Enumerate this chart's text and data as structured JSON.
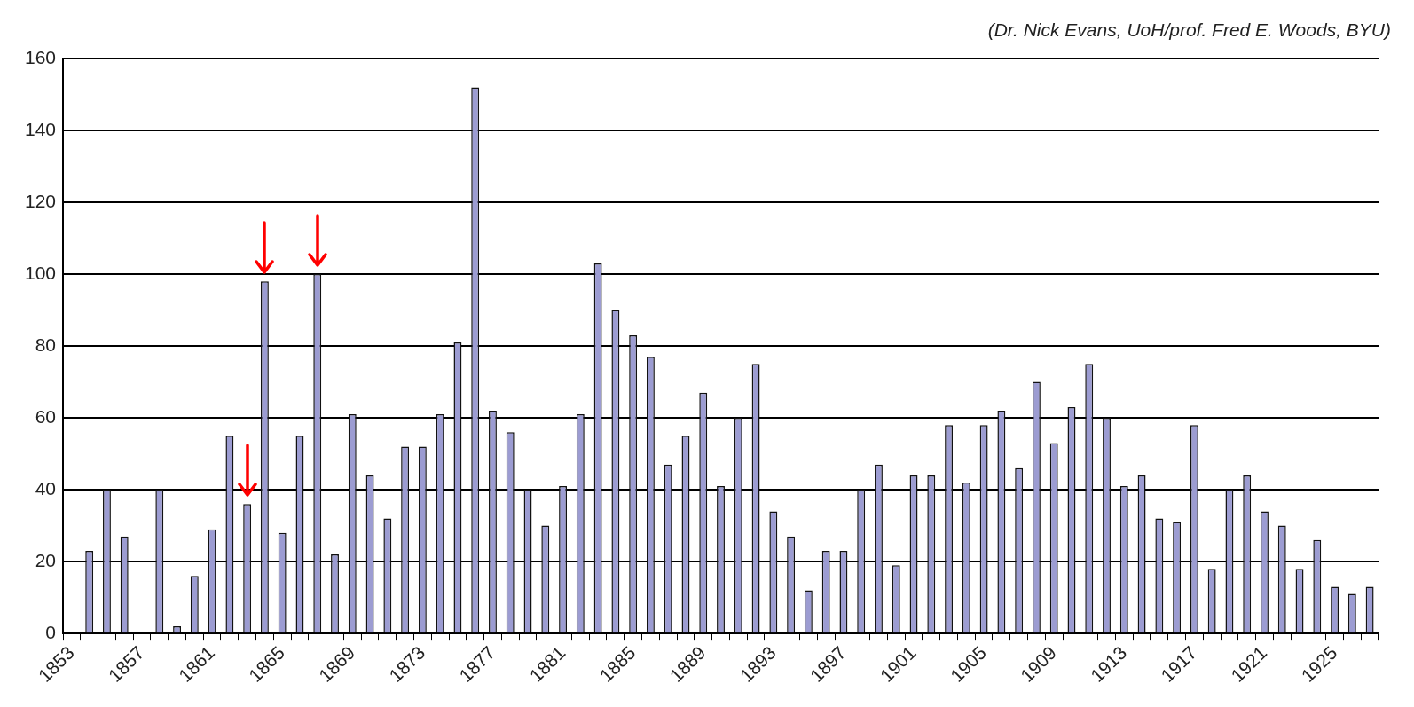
{
  "chart_data": {
    "type": "bar",
    "annotations": [
      "(Dr. Nick Evans, UoH/prof. Fred E. Woods, BYU)"
    ],
    "categories": [
      "1853",
      null,
      null,
      null,
      "1857",
      null,
      null,
      null,
      "1861",
      null,
      null,
      null,
      "1865",
      null,
      null,
      null,
      "1869",
      null,
      null,
      null,
      "1873",
      null,
      null,
      null,
      "1877",
      null,
      null,
      null,
      "1881",
      null,
      null,
      null,
      "1885",
      null,
      null,
      null,
      "1889",
      null,
      null,
      null,
      "1893",
      null,
      null,
      null,
      "1897",
      null,
      null,
      null,
      "1901",
      null,
      null,
      null,
      "1905",
      null,
      null,
      null,
      "1909",
      null,
      null,
      null,
      "1913",
      null,
      null,
      null,
      "1917",
      null,
      null,
      null,
      "1921",
      null,
      null,
      null,
      "1925",
      null,
      null
    ],
    "values": [
      null,
      23,
      40,
      27,
      0,
      40,
      2,
      16,
      29,
      55,
      36,
      98,
      28,
      55,
      100,
      22,
      61,
      44,
      32,
      52,
      52,
      61,
      81,
      152,
      62,
      56,
      40,
      30,
      41,
      61,
      103,
      90,
      83,
      77,
      47,
      55,
      67,
      41,
      60,
      75,
      34,
      27,
      12,
      23,
      23,
      40,
      47,
      19,
      44,
      44,
      58,
      42,
      58,
      62,
      46,
      70,
      53,
      63,
      75,
      60,
      41,
      44,
      32,
      31,
      58,
      18,
      40,
      44,
      34,
      30,
      18,
      26,
      13,
      11,
      13
    ],
    "color": "#9c9cd2",
    "ylim": [
      0,
      160
    ],
    "yticks": [
      0,
      20,
      40,
      60,
      80,
      100,
      120,
      140,
      160
    ],
    "grid": "y"
  }
}
